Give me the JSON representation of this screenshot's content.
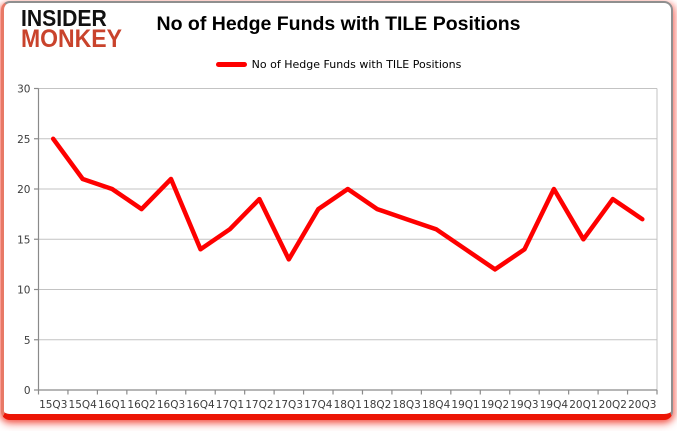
{
  "header": {
    "logo_line1": "INSIDER",
    "logo_line2": "MONKEY",
    "title": "No of Hedge Funds with TILE Positions"
  },
  "legend": {
    "label": "No of Hedge Funds with TILE Positions"
  },
  "chart_data": {
    "type": "line",
    "title": "No of Hedge Funds with TILE Positions",
    "categories": [
      "15Q3",
      "15Q4",
      "16Q1",
      "16Q2",
      "16Q3",
      "16Q4",
      "17Q1",
      "17Q2",
      "17Q3",
      "17Q4",
      "18Q1",
      "18Q2",
      "18Q3",
      "18Q4",
      "19Q1",
      "19Q2",
      "19Q3",
      "19Q4",
      "20Q1",
      "20Q2",
      "20Q3"
    ],
    "series": [
      {
        "name": "No of Hedge Funds with TILE Positions",
        "color": "#fe0000",
        "values": [
          25,
          21,
          20,
          18,
          21,
          14,
          16,
          19,
          13,
          18,
          20,
          18,
          17,
          16,
          14,
          12,
          14,
          20,
          15,
          19,
          17
        ]
      }
    ],
    "xlabel": "",
    "ylabel": "",
    "ylim": [
      0,
      30
    ],
    "yticks": [
      0,
      5,
      10,
      15,
      20,
      25,
      30
    ],
    "grid": true,
    "legend_position": "top"
  },
  "colors": {
    "line_red": "#fe0000",
    "logo_black": "#111111",
    "logo_red": "#c9432c",
    "title_text": "#000000",
    "tick_label": "#3d3d3d",
    "grid": "#c3c3c3",
    "axis": "#8a8a8a",
    "frame_border_gray": "#8f8f8f",
    "frame_left_red": "#e87966",
    "frame_bottom_red": "#ec1505",
    "shadow_red": "rgba(236,30,15,0.55)"
  }
}
